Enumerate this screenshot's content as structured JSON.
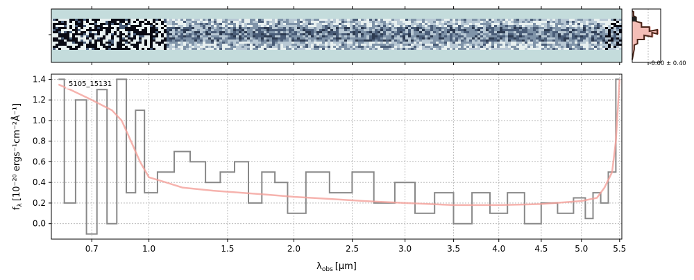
{
  "chart_data": [
    {
      "type": "heatmap",
      "panel": "2d-spectrum",
      "description_colormap": "bone_r-like",
      "colors": {
        "background_band": "#c4dcdc",
        "dark": "#0a0a14",
        "mid": "#4a5d78"
      }
    },
    {
      "type": "histogram",
      "panel": "pixel-distribution",
      "annotation": "-0.00 ± 0.40",
      "colors": {
        "step": "#4a2418",
        "fill": "#f3b8b0",
        "marker": "#222222"
      }
    },
    {
      "type": "line",
      "panel": "1d-spectrum",
      "label": "5105_15131",
      "xlabel": "λ",
      "xlabel_sub": "obs",
      "xlabel_unit": "[μm]",
      "ylabel": "f",
      "ylabel_sub": "λ",
      "ylabel_unit": "[10⁻²⁰ ergs⁻¹cm⁻²Å⁻¹]",
      "ylim": [
        -0.15,
        1.45
      ],
      "xlim": [
        0.52,
        5.53
      ],
      "x_scale": "sqrt",
      "y_ticks": [
        "0.0",
        "0.2",
        "0.4",
        "0.6",
        "0.8",
        "1.0",
        "1.2",
        "1.4"
      ],
      "x_ticks": [
        "0.7",
        "1.0",
        "1.5",
        "2.0",
        "2.5",
        "3.0",
        "3.5",
        "4.0",
        "4.5",
        "5.0",
        "5.5"
      ],
      "grid": true,
      "series": [
        {
          "role": "data",
          "color": "#888888",
          "x": [
            0.55,
            0.6,
            0.65,
            0.7,
            0.75,
            0.8,
            0.85,
            0.9,
            0.95,
            1.0,
            1.1,
            1.2,
            1.3,
            1.4,
            1.5,
            1.6,
            1.7,
            1.8,
            1.9,
            2.0,
            2.2,
            2.4,
            2.6,
            2.8,
            3.0,
            3.2,
            3.4,
            3.6,
            3.8,
            4.0,
            4.2,
            4.4,
            4.6,
            4.8,
            5.0,
            5.1,
            5.2,
            5.3,
            5.4,
            5.5
          ],
          "y": [
            1.4,
            0.2,
            1.2,
            -0.1,
            1.3,
            0.0,
            1.4,
            0.3,
            1.1,
            0.3,
            0.5,
            0.7,
            0.6,
            0.4,
            0.5,
            0.6,
            0.2,
            0.5,
            0.4,
            0.1,
            0.5,
            0.3,
            0.5,
            0.2,
            0.4,
            0.1,
            0.3,
            0.0,
            0.3,
            0.1,
            0.3,
            0.0,
            0.2,
            0.1,
            0.25,
            0.05,
            0.3,
            0.2,
            0.5,
            1.4
          ]
        },
        {
          "role": "model",
          "color": "#f4a09a",
          "x": [
            0.55,
            0.6,
            0.7,
            0.8,
            0.85,
            0.9,
            0.95,
            1.0,
            1.1,
            1.2,
            1.4,
            1.6,
            1.8,
            2.0,
            2.3,
            2.6,
            3.0,
            3.5,
            4.0,
            4.5,
            5.0,
            5.2,
            5.3,
            5.4,
            5.45,
            5.5
          ],
          "y": [
            1.35,
            1.3,
            1.2,
            1.1,
            1.0,
            0.8,
            0.6,
            0.45,
            0.4,
            0.35,
            0.32,
            0.3,
            0.28,
            0.26,
            0.24,
            0.22,
            0.2,
            0.18,
            0.18,
            0.19,
            0.22,
            0.25,
            0.35,
            0.5,
            0.8,
            1.4
          ]
        }
      ]
    }
  ]
}
